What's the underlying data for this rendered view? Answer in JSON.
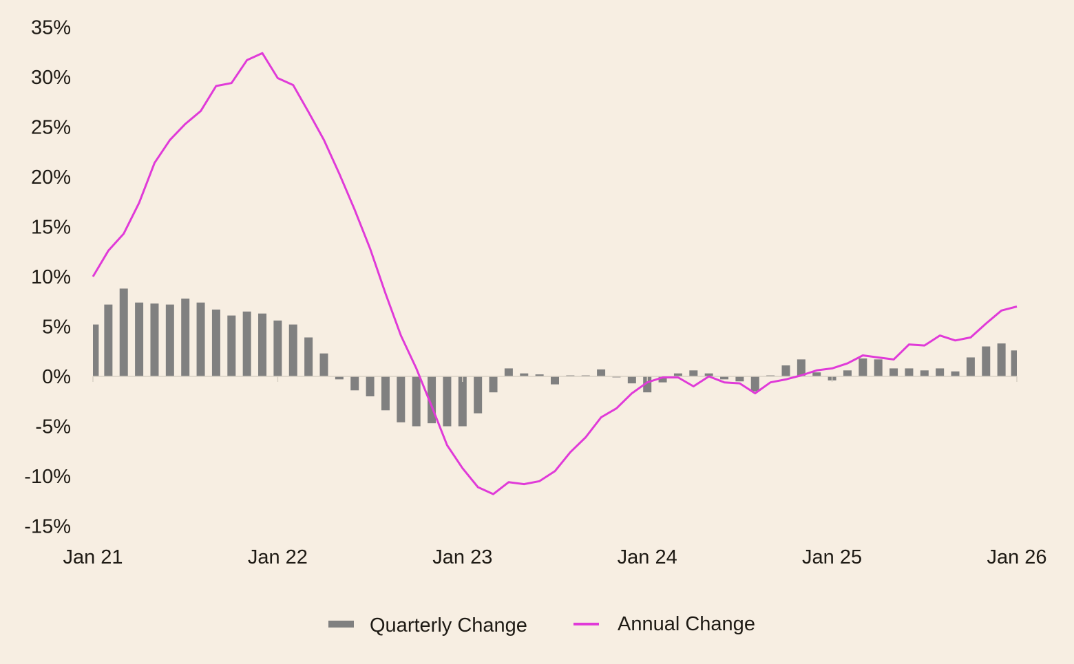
{
  "chart_data": {
    "type": "bar+line",
    "title": "",
    "xlabel": "",
    "ylabel": "",
    "ylim": [
      -15,
      35
    ],
    "yticks": [
      35,
      30,
      25,
      20,
      15,
      10,
      5,
      0,
      -5,
      -10,
      -15
    ],
    "ytick_labels": [
      "35%",
      "30%",
      "25%",
      "20%",
      "15%",
      "10%",
      "5%",
      "0%",
      "-5%",
      "-10%",
      "-15%"
    ],
    "xtick_labels": [
      "Jan 21",
      "Jan 22",
      "Jan 23",
      "Jan 24",
      "Jan 25",
      "Jan 26"
    ],
    "x_start": "Jan 21",
    "x_interval": "monthly",
    "grid": false,
    "legend_placement": "bottom-center",
    "series": [
      {
        "name": "Quarterly Change",
        "kind": "bar",
        "color": "#808080",
        "values": [
          5.2,
          7.2,
          8.8,
          7.4,
          7.3,
          7.2,
          7.8,
          7.4,
          6.7,
          6.1,
          6.5,
          6.3,
          5.6,
          5.2,
          3.9,
          2.3,
          -0.3,
          -1.4,
          -2.0,
          -3.4,
          -4.6,
          -5.0,
          -4.7,
          -5.0,
          -5.0,
          -3.7,
          -1.6,
          0.8,
          0.3,
          0.2,
          -0.8,
          0.1,
          0.1,
          0.7,
          -0.1,
          -0.7,
          -1.6,
          -0.6,
          0.3,
          0.6,
          0.3,
          -0.3,
          -0.5,
          -1.5,
          0.1,
          1.1,
          1.7,
          0.4,
          -0.4,
          0.6,
          1.8,
          1.7,
          0.8,
          0.8,
          0.6,
          0.8,
          0.5,
          1.9,
          3.0,
          3.3,
          2.6
        ]
      },
      {
        "name": "Annual Change",
        "kind": "line",
        "color": "#e03ad8",
        "values": [
          10.0,
          12.6,
          14.3,
          17.4,
          21.4,
          23.7,
          25.3,
          26.6,
          29.1,
          29.4,
          31.7,
          32.4,
          29.9,
          29.2,
          26.5,
          23.7,
          20.3,
          16.7,
          12.8,
          8.3,
          4.1,
          0.8,
          -3.0,
          -6.9,
          -9.2,
          -11.1,
          -11.8,
          -10.6,
          -10.8,
          -10.5,
          -9.5,
          -7.6,
          -6.1,
          -4.1,
          -3.2,
          -1.7,
          -0.6,
          -0.1,
          -0.1,
          -1.0,
          0.0,
          -0.6,
          -0.7,
          -1.7,
          -0.6,
          -0.3,
          0.1,
          0.6,
          0.8,
          1.3,
          2.1,
          1.9,
          1.7,
          3.2,
          3.1,
          4.1,
          3.6,
          3.9,
          5.3,
          6.6,
          7.0
        ]
      }
    ]
  }
}
